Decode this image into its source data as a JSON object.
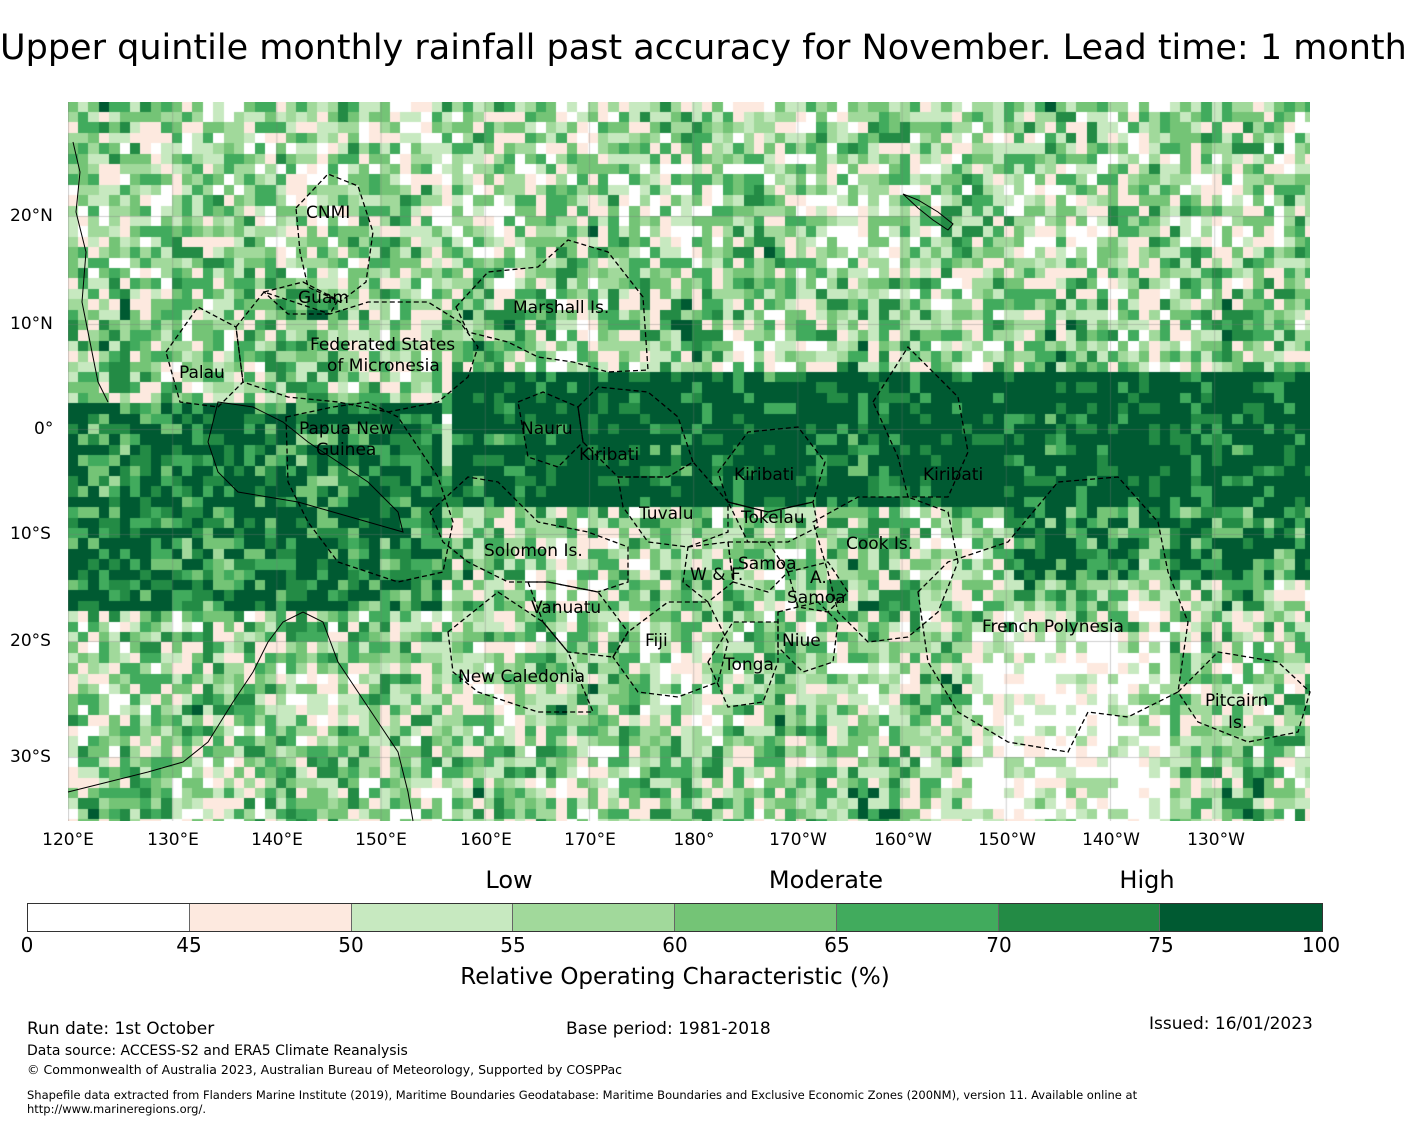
{
  "title": "Upper quintile monthly rainfall past accuracy for November. Lead time: 1 month",
  "map": {
    "longitude_labels": [
      "120°E",
      "130°E",
      "140°E",
      "150°E",
      "160°E",
      "170°E",
      "180°",
      "170°W",
      "160°W",
      "150°W",
      "140°W",
      "130°W"
    ],
    "latitude_labels": [
      "20°N",
      "10°N",
      "0°",
      "10°S",
      "20°S",
      "30°S"
    ],
    "regions": [
      "CNMI",
      "Guam",
      "Marshall Is.",
      "Federated States",
      "of Micronesia",
      "Palau",
      "Papua New",
      "Guinea",
      "Nauru",
      "Kiribati",
      "Kiribati",
      "Kiribati",
      "Tuvalu",
      "Tokelau",
      "Cook Is.",
      "Solomon Is.",
      "Samoa",
      "W & F.",
      "A.",
      "Samoa",
      "Vanuatu",
      "Fiji",
      "Niue",
      "Tonga",
      "French Polynesia",
      "New Caledonia",
      "Pitcairn",
      "Is."
    ]
  },
  "legend": {
    "categories": [
      "Low",
      "Moderate",
      "High"
    ],
    "bins": [
      "0",
      "45",
      "50",
      "55",
      "60",
      "65",
      "70",
      "75",
      "100"
    ],
    "colors": [
      "#ffffff",
      "#fde9df",
      "#c7e9c0",
      "#a1d99b",
      "#74c476",
      "#41ab5d",
      "#238b45",
      "#005a32"
    ],
    "label": "Relative Operating Characteristic (%)"
  },
  "footer": {
    "run_date": "Run date: 1st October",
    "base_period": "Base period: 1981-2018",
    "issued": "Issued: 16/01/2023",
    "data_source": "Data source: ACCESS-S2 and ERA5 Climate Reanalysis",
    "copyright": "© Commonwealth of Australia 2023, Australian Bureau of Meteorology, Supported by COSPPac",
    "shapefile_line1": "Shapefile data extracted from Flanders Marine Institute (2019), Maritime Boundaries Geodatabase: Maritime Boundaries and Exclusive Economic Zones (200NM), version 11. Available online at",
    "shapefile_line2": "http://www.marineregions.org/."
  }
}
